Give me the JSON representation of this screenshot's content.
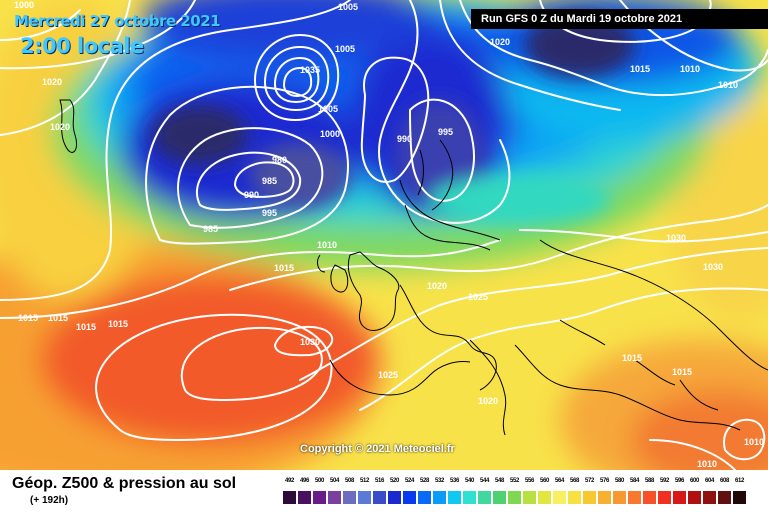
{
  "header": {
    "valid_date": "Mercredi 27 octobre 2021",
    "local_time": "2:00 locale",
    "run_info": "Run GFS 0 Z du Mardi 19 octobre 2021"
  },
  "copyright": "Copyright © 2021 Meteociel.fr",
  "footer": {
    "title": "Géop. Z500 & pression au sol",
    "subtitle": "(+ 192h)"
  },
  "scale": {
    "values": [
      "492",
      "496",
      "500",
      "504",
      "508",
      "512",
      "516",
      "520",
      "524",
      "528",
      "532",
      "536",
      "540",
      "544",
      "548",
      "552",
      "556",
      "560",
      "564",
      "568",
      "572",
      "576",
      "580",
      "584",
      "588",
      "592",
      "596",
      "600",
      "604",
      "608",
      "612"
    ],
    "colors": [
      "#2d0a3a",
      "#4a1060",
      "#6a1b8a",
      "#7b3fa0",
      "#6e6cc0",
      "#5a7ad8",
      "#3a4dc8",
      "#1a2ad0",
      "#0a3af0",
      "#0a6af8",
      "#0a9cf8",
      "#10c8f0",
      "#30e0d0",
      "#40d8a0",
      "#50d070",
      "#80d850",
      "#b8e040",
      "#e0e840",
      "#f8f060",
      "#f8e040",
      "#f8c830",
      "#f8b030",
      "#f89830",
      "#f87830",
      "#f85028",
      "#f03020",
      "#d81818",
      "#b01010",
      "#901010",
      "#601010",
      "#200808"
    ]
  },
  "pressure_labels": [
    {
      "text": "1000"
    },
    {
      "text": "1005"
    },
    {
      "text": "1005"
    },
    {
      "text": "1020"
    },
    {
      "text": "1020"
    },
    {
      "text": "1010"
    },
    {
      "text": "1015"
    },
    {
      "text": "1010"
    },
    {
      "text": "1020"
    },
    {
      "text": "1035"
    },
    {
      "text": "1005"
    },
    {
      "text": "1000"
    },
    {
      "text": "990"
    },
    {
      "text": "995"
    },
    {
      "text": "980"
    },
    {
      "text": "985"
    },
    {
      "text": "990"
    },
    {
      "text": "995"
    },
    {
      "text": "985"
    },
    {
      "text": "1010"
    },
    {
      "text": "1015"
    },
    {
      "text": "1030"
    },
    {
      "text": "1030"
    },
    {
      "text": "1020"
    },
    {
      "text": "1025"
    },
    {
      "text": "1015"
    },
    {
      "text": "1015"
    },
    {
      "text": "1015"
    },
    {
      "text": "1015"
    },
    {
      "text": "1030"
    },
    {
      "text": "1025"
    },
    {
      "text": "1020"
    },
    {
      "text": "1015"
    },
    {
      "text": "1015"
    },
    {
      "text": "1010"
    },
    {
      "text": "1010"
    },
    {
      "text": "1005"
    },
    {
      "text": "1010"
    }
  ],
  "colors": {
    "low_center": "#2a2c6a",
    "high_center": "#f03a28"
  }
}
